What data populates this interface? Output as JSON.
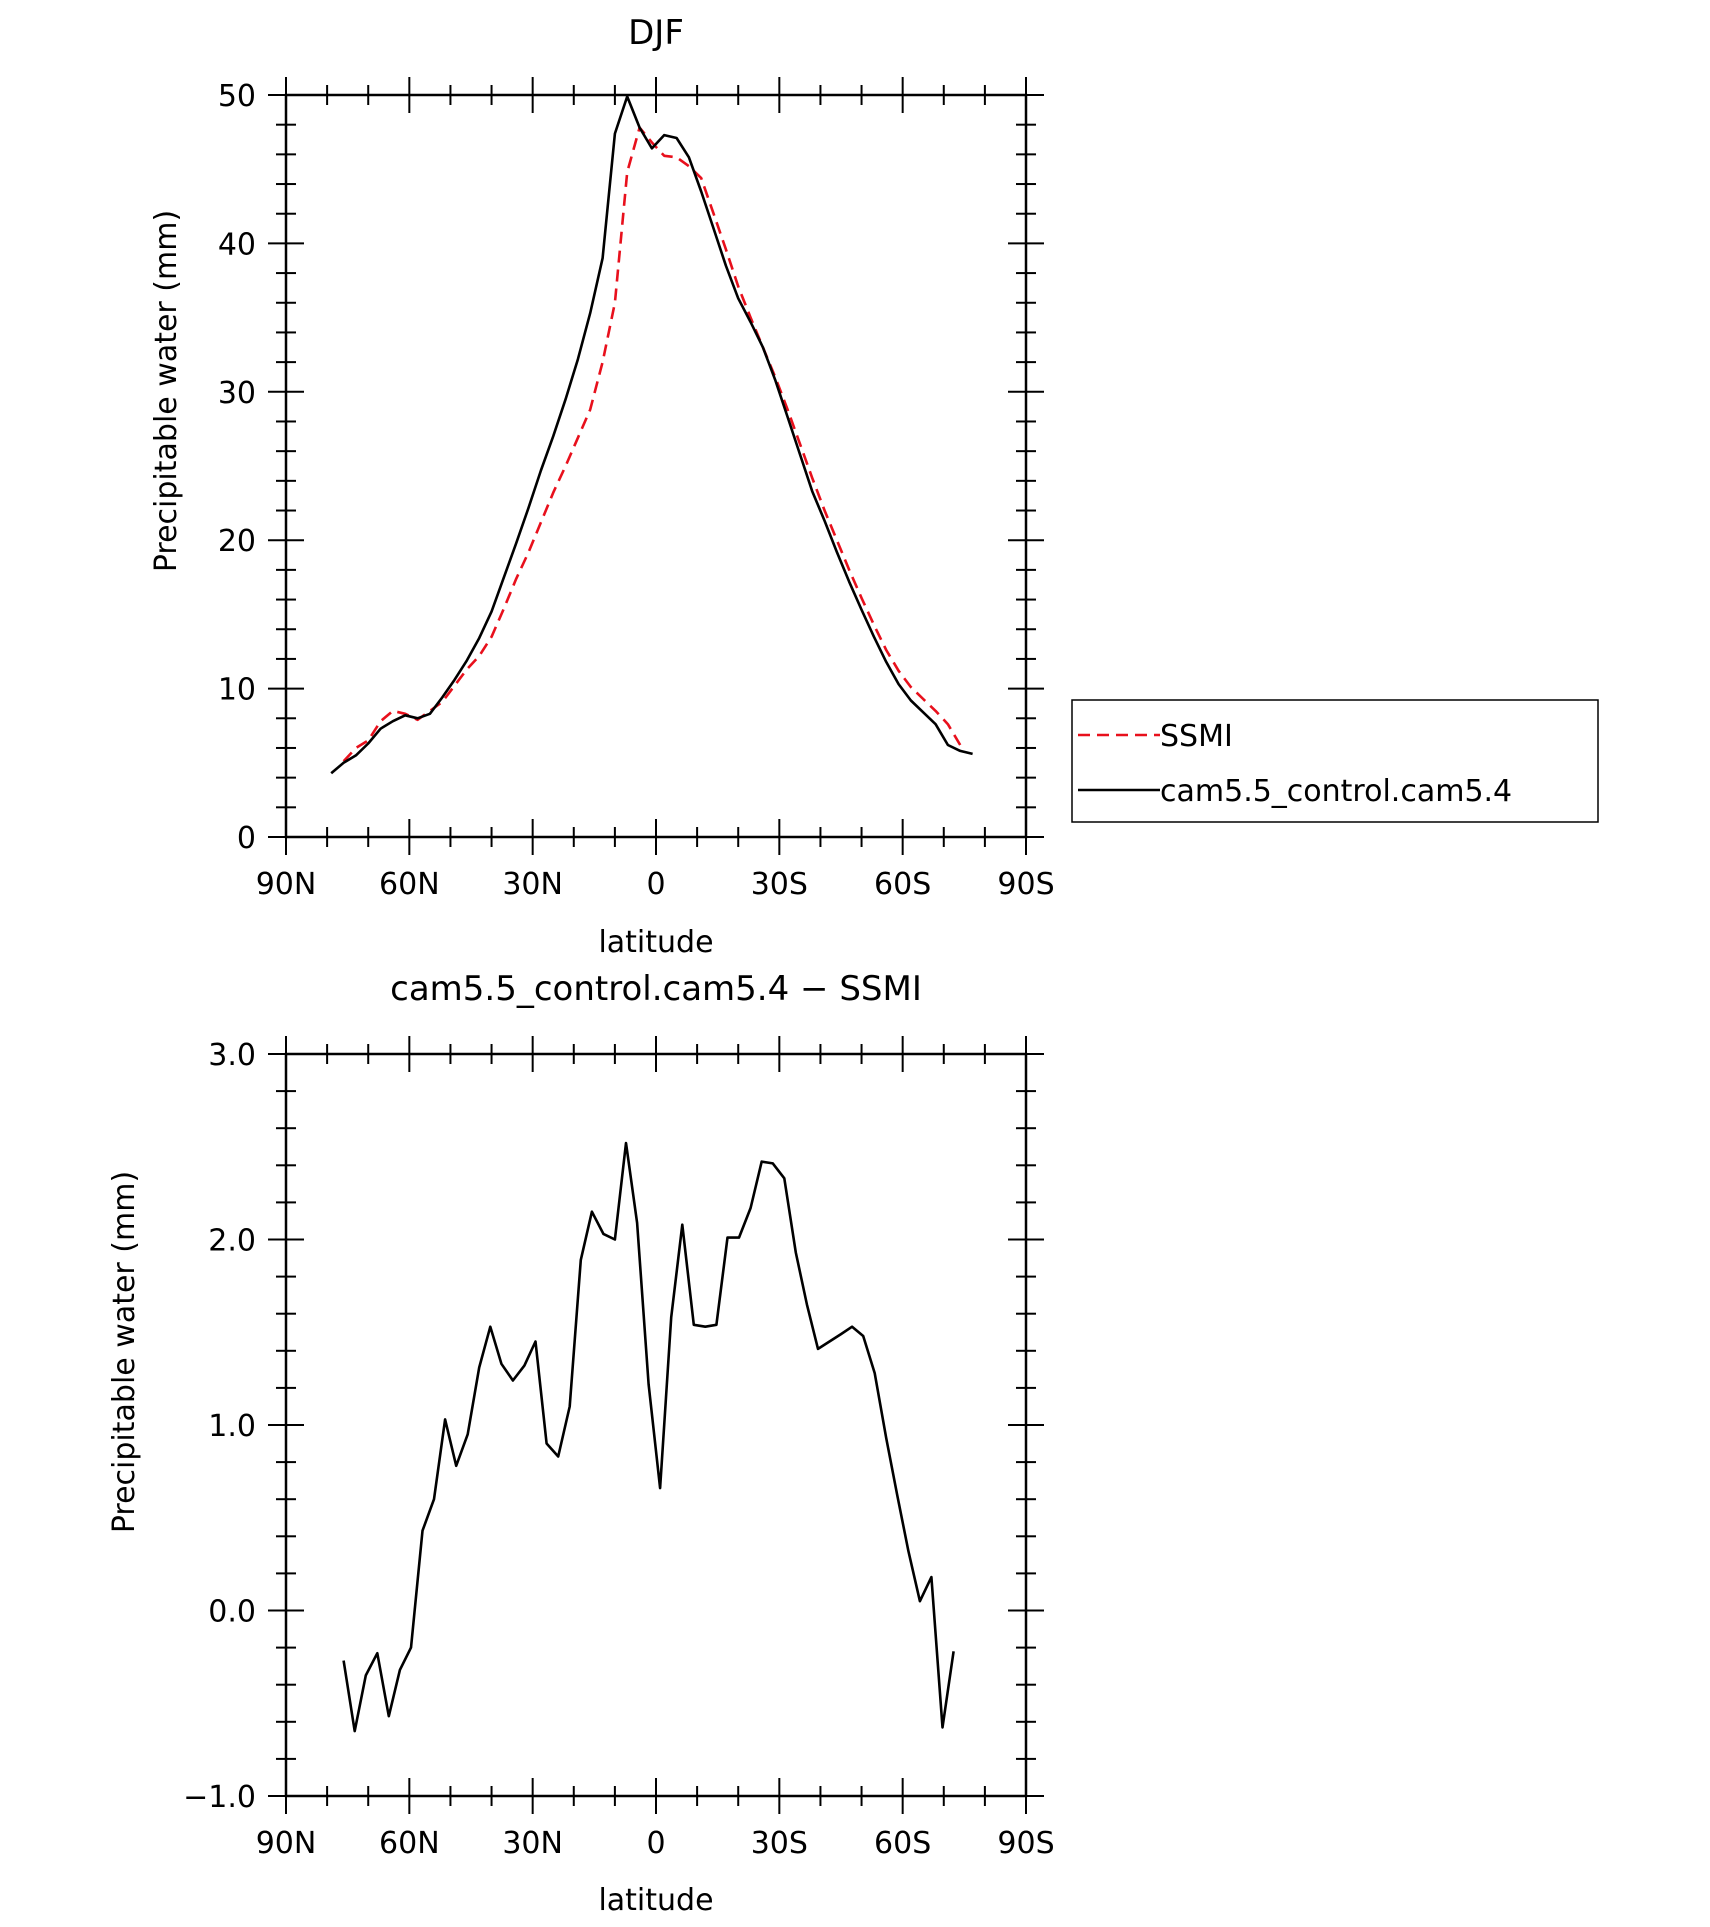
{
  "chart_data": [
    {
      "type": "line",
      "title": "DJF",
      "xlabel": "latitude",
      "ylabel": "Precipitable water (mm)",
      "xlim": [
        90,
        -90
      ],
      "ylim": [
        0,
        50
      ],
      "x_ticks": [
        {
          "value": 90,
          "label": "90N"
        },
        {
          "value": 60,
          "label": "60N"
        },
        {
          "value": 30,
          "label": "30N"
        },
        {
          "value": 0,
          "label": "0"
        },
        {
          "value": -30,
          "label": "30S"
        },
        {
          "value": -60,
          "label": "60S"
        },
        {
          "value": -90,
          "label": "90S"
        }
      ],
      "y_ticks": [
        {
          "value": 0,
          "label": "0"
        },
        {
          "value": 10,
          "label": "10"
        },
        {
          "value": 20,
          "label": "20"
        },
        {
          "value": 30,
          "label": "30"
        },
        {
          "value": 40,
          "label": "40"
        },
        {
          "value": 50,
          "label": "50"
        }
      ],
      "legend": {
        "placement": "right"
      },
      "series": [
        {
          "name": "SSMI",
          "color": "#e8101c",
          "dash": true,
          "x": [
            76,
            73,
            70,
            67,
            64,
            61,
            58,
            55,
            52,
            49,
            46,
            43,
            40,
            37,
            34,
            31,
            28,
            25,
            22,
            19,
            16,
            13,
            10,
            7,
            4,
            1,
            -2,
            -5,
            -8,
            -11,
            -14,
            -17,
            -20,
            -23,
            -26,
            -29,
            -32,
            -35,
            -38,
            -41,
            -44,
            -47,
            -50,
            -53,
            -56,
            -59,
            -62,
            -65,
            -68,
            -71,
            -74,
            -77
          ],
          "y": [
            5.1,
            6.0,
            6.5,
            7.8,
            8.5,
            8.3,
            7.9,
            8.5,
            9.1,
            10.2,
            11.3,
            12.2,
            13.5,
            15.4,
            17.4,
            19.2,
            21.2,
            23.2,
            25.0,
            26.9,
            28.8,
            32.0,
            36.0,
            44.8,
            47.8,
            46.8,
            45.9,
            45.8,
            45.2,
            44.4,
            42.0,
            39.6,
            37.1,
            35.0,
            33.0,
            31.0,
            28.8,
            26.5,
            24.2,
            22.0,
            20.0,
            18.0,
            16.1,
            14.3,
            12.6,
            11.2,
            10.1,
            9.3,
            8.5,
            7.6,
            6.2,
            null
          ]
        },
        {
          "name": "cam5.5_control.cam5.4",
          "color": "#000000",
          "dash": false,
          "x": [
            79,
            76,
            73,
            70,
            67,
            64,
            61,
            58,
            55,
            52,
            49,
            46,
            43,
            40,
            37,
            34,
            31,
            28,
            25,
            22,
            19,
            16,
            13,
            10,
            7,
            4,
            1,
            -2,
            -5,
            -8,
            -11,
            -14,
            -17,
            -20,
            -23,
            -26,
            -29,
            -32,
            -35,
            -38,
            -41,
            -44,
            -47,
            -50,
            -53,
            -56,
            -59,
            -62,
            -65,
            -68,
            -71,
            -74,
            -77
          ],
          "y": [
            4.3,
            5.0,
            5.5,
            6.3,
            7.3,
            7.8,
            8.2,
            8.0,
            8.3,
            9.4,
            10.6,
            11.9,
            13.4,
            15.2,
            17.5,
            19.8,
            22.2,
            24.7,
            27.0,
            29.5,
            32.2,
            35.3,
            39.0,
            47.4,
            49.9,
            47.8,
            46.4,
            47.3,
            47.1,
            45.8,
            43.5,
            41.0,
            38.5,
            36.3,
            34.7,
            33.0,
            30.8,
            28.3,
            25.8,
            23.3,
            21.3,
            19.2,
            17.2,
            15.3,
            13.5,
            11.8,
            10.3,
            9.2,
            8.4,
            7.6,
            6.2,
            5.8,
            5.6
          ]
        }
      ]
    },
    {
      "type": "line",
      "title": "cam5.5_control.cam5.4 − SSMI",
      "xlabel": "latitude",
      "ylabel": "Precipitable water (mm)",
      "xlim": [
        90,
        -90
      ],
      "ylim": [
        -1.0,
        3.0
      ],
      "x_ticks": [
        {
          "value": 90,
          "label": "90N"
        },
        {
          "value": 60,
          "label": "60N"
        },
        {
          "value": 30,
          "label": "30N"
        },
        {
          "value": 0,
          "label": "0"
        },
        {
          "value": -30,
          "label": "30S"
        },
        {
          "value": -60,
          "label": "60S"
        },
        {
          "value": -90,
          "label": "90S"
        }
      ],
      "y_ticks": [
        {
          "value": -1.0,
          "label": "−1.0"
        },
        {
          "value": 0.0,
          "label": "0.0"
        },
        {
          "value": 1.0,
          "label": "1.0"
        },
        {
          "value": 2.0,
          "label": "2.0"
        },
        {
          "value": 3.0,
          "label": "3.0"
        }
      ],
      "series": [
        {
          "name": "",
          "color": "#000000",
          "dash": false,
          "x": [
            76,
            73.3,
            70.6,
            67.8,
            65,
            62.3,
            59.6,
            56.8,
            54,
            51.3,
            48.6,
            45.8,
            43,
            40.3,
            37.6,
            34.8,
            32,
            29.3,
            26.6,
            23.8,
            21,
            18.3,
            15.6,
            12.8,
            10,
            7.3,
            4.6,
            1.8,
            -1,
            -3.7,
            -6.4,
            -9.2,
            -12,
            -14.7,
            -17.4,
            -20.2,
            -23,
            -25.7,
            -28.4,
            -31.2,
            -34,
            -36.7,
            -39.4,
            -42.2,
            -45,
            -47.7,
            -50.4,
            -53.2,
            -56,
            -58.7,
            -61.4,
            -64.2,
            -67,
            -69.7,
            -72.4,
            -75.2
          ],
          "y": [
            -0.27,
            -0.65,
            -0.35,
            -0.23,
            -0.57,
            -0.32,
            -0.2,
            0.43,
            0.6,
            1.03,
            0.78,
            0.95,
            1.31,
            1.53,
            1.33,
            1.24,
            1.32,
            1.45,
            0.9,
            0.83,
            1.1,
            1.89,
            2.15,
            2.03,
            2.0,
            2.52,
            2.09,
            1.22,
            0.66,
            1.58,
            2.08,
            1.54,
            1.53,
            1.54,
            2.01,
            2.01,
            2.17,
            2.42,
            2.41,
            2.33,
            1.93,
            1.65,
            1.41,
            1.45,
            1.49,
            1.53,
            1.48,
            1.28,
            0.93,
            0.62,
            0.32,
            0.05,
            0.18,
            -0.63,
            -0.22,
            null
          ]
        }
      ]
    }
  ]
}
